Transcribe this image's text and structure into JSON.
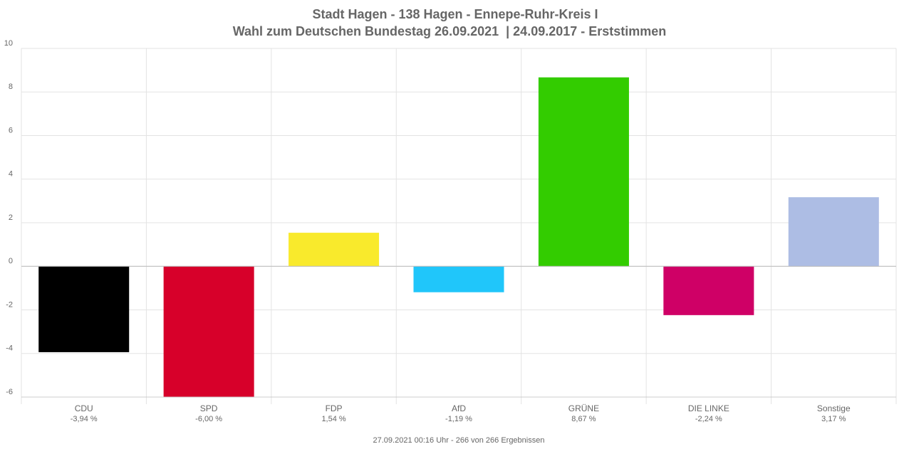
{
  "chart_data": {
    "type": "bar",
    "title": "Stadt Hagen - 138 Hagen - Ennepe-Ruhr-Kreis I",
    "subtitle": "Wahl zum Deutschen Bundestag 26.09.2021  | 24.09.2017 - Erststimmen",
    "footer": "27.09.2021 00:16 Uhr - 266 von 266 Ergebnissen",
    "categories": [
      "CDU",
      "SPD",
      "FDP",
      "AfD",
      "GRÜNE",
      "DIE LINKE",
      "Sonstige"
    ],
    "values": [
      -3.94,
      -6.0,
      1.54,
      -1.19,
      8.67,
      -2.24,
      3.17
    ],
    "value_labels": [
      "-3,94 %",
      "-6,00 %",
      "1,54 %",
      "-1,19 %",
      "8,67 %",
      "-2,24 %",
      "3,17 %"
    ],
    "colors": [
      "#000000",
      "#d7002a",
      "#f9ea2c",
      "#20c6fa",
      "#33cc00",
      "#cf0066",
      "#adbde4"
    ],
    "ylim": [
      -6,
      10
    ],
    "yticks": [
      -6,
      -4,
      -2,
      0,
      2,
      4,
      6,
      8,
      10
    ],
    "grid": true
  }
}
